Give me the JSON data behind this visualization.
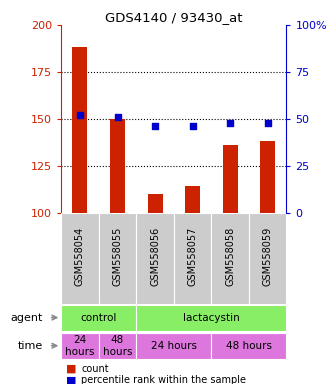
{
  "title": "GDS4140 / 93430_at",
  "samples": [
    "GSM558054",
    "GSM558055",
    "GSM558056",
    "GSM558057",
    "GSM558058",
    "GSM558059"
  ],
  "count_values": [
    188,
    150,
    110,
    114,
    136,
    138
  ],
  "percentile_values": [
    52,
    51,
    46,
    46,
    48,
    48
  ],
  "ylim_left": [
    100,
    200
  ],
  "ylim_right": [
    0,
    100
  ],
  "yticks_left": [
    100,
    125,
    150,
    175,
    200
  ],
  "yticks_right": [
    0,
    25,
    50,
    75,
    100
  ],
  "bar_color": "#cc2200",
  "dot_color": "#0000cc",
  "bar_bottom": 100,
  "left_axis_color": "#cc2200",
  "right_axis_color": "#0000cc",
  "legend_count_label": "count",
  "legend_pct_label": "percentile rank within the sample",
  "panel_bg": "#cccccc",
  "agent_green": "#88ee66",
  "time_pink": "#dd77dd"
}
